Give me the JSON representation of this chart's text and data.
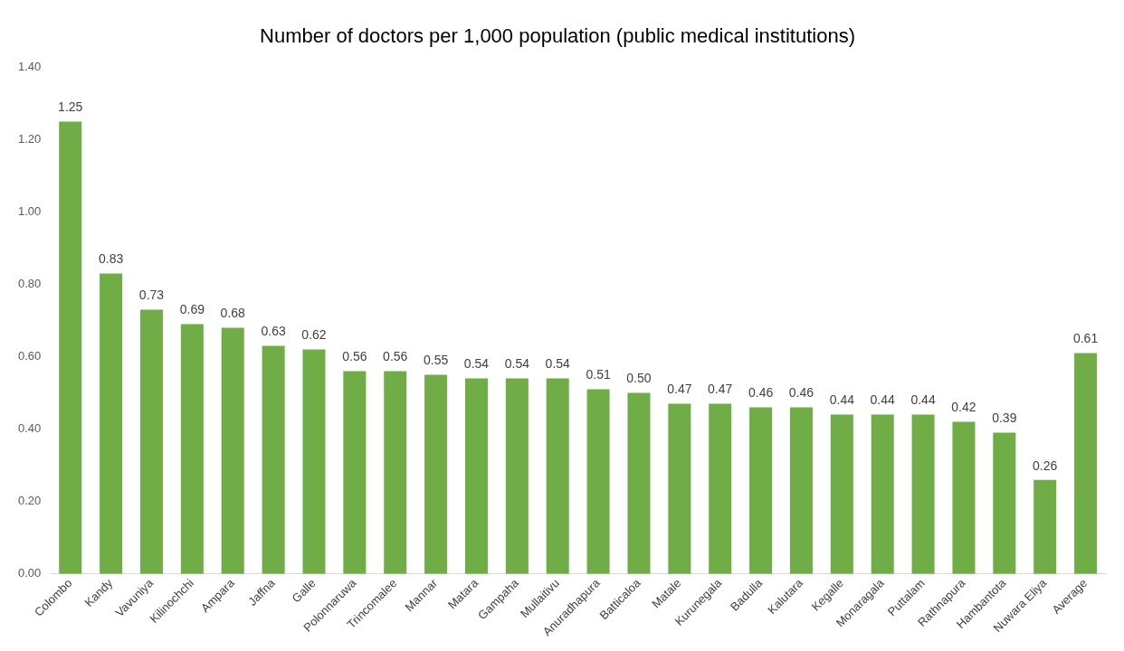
{
  "chart_data": {
    "type": "bar",
    "title": "Number of doctors per 1,000 population (public medical institutions)",
    "categories": [
      "Colombo",
      "Kandy",
      "Vavuniya",
      "Kilinochchi",
      "Ampara",
      "Jaffna",
      "Galle",
      "Polonnaruwa",
      "Trincomalee",
      "Mannar",
      "Matara",
      "Gampaha",
      "Mullaitivu",
      "Anuradhapura",
      "Batticaloa",
      "Matale",
      "Kurunegala",
      "Badulla",
      "Kalutara",
      "Kegalle",
      "Monaragala",
      "Puttalam",
      "Rathnapura",
      "Hambantota",
      "Nuwara Eliya",
      "Average"
    ],
    "values": [
      1.25,
      0.83,
      0.73,
      0.69,
      0.68,
      0.63,
      0.62,
      0.56,
      0.56,
      0.55,
      0.54,
      0.54,
      0.54,
      0.51,
      0.5,
      0.47,
      0.47,
      0.46,
      0.46,
      0.44,
      0.44,
      0.44,
      0.42,
      0.39,
      0.26,
      0.61
    ],
    "value_labels": [
      "1.25",
      "0.83",
      "0.73",
      "0.69",
      "0.68",
      "0.63",
      "0.62",
      "0.56",
      "0.56",
      "0.55",
      "0.54",
      "0.54",
      "0.54",
      "0.51",
      "0.50",
      "0.47",
      "0.47",
      "0.46",
      "0.46",
      "0.44",
      "0.44",
      "0.44",
      "0.42",
      "0.39",
      "0.26",
      "0.61"
    ],
    "color": "#70ad47",
    "ylim": [
      0,
      1.4
    ],
    "yticks": [
      {
        "value": 0,
        "label": "0.00"
      },
      {
        "value": 0.2,
        "label": "0.20"
      },
      {
        "value": 0.4,
        "label": "0.40"
      },
      {
        "value": 0.6,
        "label": "0.60"
      },
      {
        "value": 0.8,
        "label": "0.80"
      },
      {
        "value": 1,
        "label": "1.00"
      },
      {
        "value": 1.2,
        "label": "1.20"
      },
      {
        "value": 1.4,
        "label": "1.40"
      }
    ],
    "grid": false,
    "legend": false
  }
}
